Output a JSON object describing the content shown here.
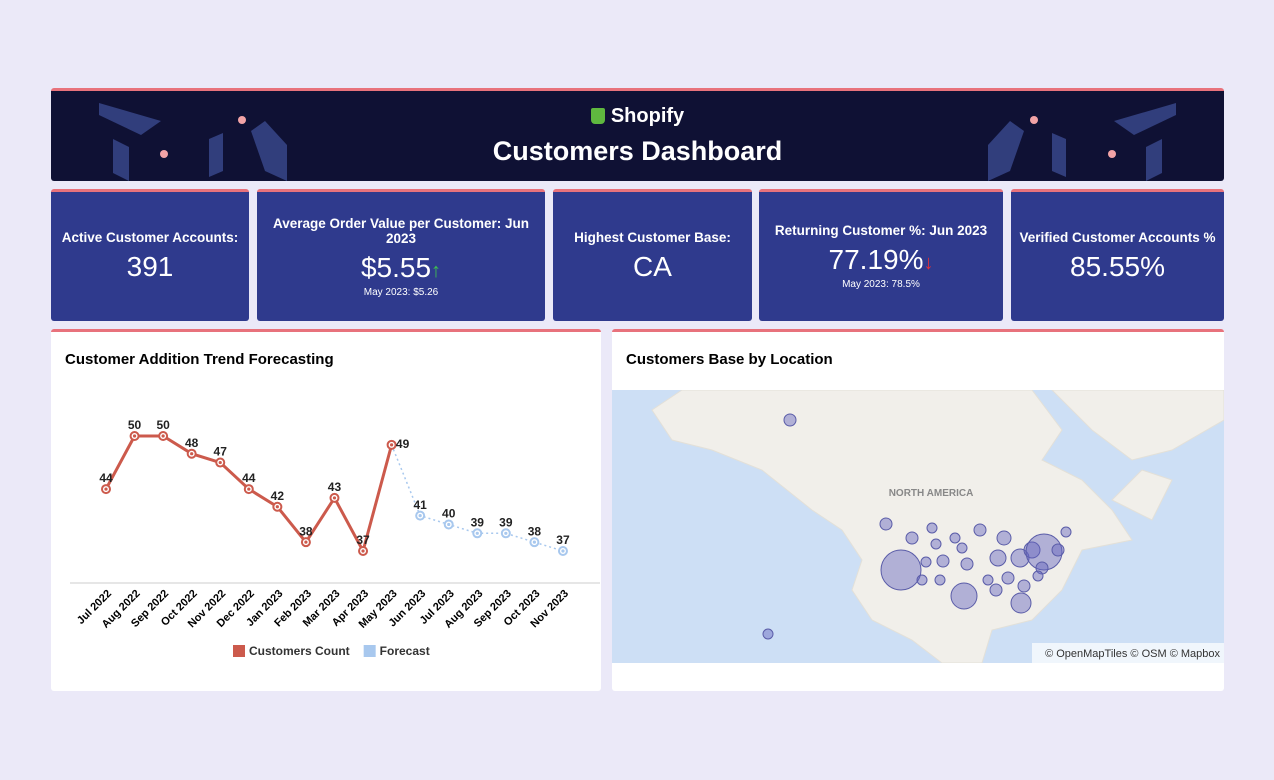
{
  "header": {
    "brand": "Shopify",
    "title": "Customers Dashboard"
  },
  "kpis": [
    {
      "title": "Active Customer Accounts:",
      "value": "391"
    },
    {
      "title": "Average Order Value per Customer: Jun 2023",
      "value": "$5.55",
      "sub": "May 2023: $5.26",
      "trend": "up"
    },
    {
      "title": "Highest Customer Base:",
      "value": "CA"
    },
    {
      "title": "Returning Customer %: Jun 2023",
      "value": "77.19%",
      "sub": "May 2023: 78.5%",
      "trend": "down"
    },
    {
      "title": "Verified Customer Accounts %",
      "value": "85.55%"
    }
  ],
  "chart_data": {
    "type": "line",
    "title": "Customer Addition Trend Forecasting",
    "categories": [
      "Jul 2022",
      "Aug 2022",
      "Sep 2022",
      "Oct 2022",
      "Nov 2022",
      "Dec 2022",
      "Jan 2023",
      "Feb 2023",
      "Mar 2023",
      "Apr 2023",
      "May 2023",
      "Jun 2023",
      "Jul 2023",
      "Aug 2023",
      "Sep 2023",
      "Oct 2023",
      "Nov 2023"
    ],
    "series": [
      {
        "name": "Customers Count",
        "color": "#cc5a4c",
        "values": [
          44,
          50,
          50,
          48,
          47,
          44,
          42,
          38,
          43,
          37,
          49,
          null,
          null,
          null,
          null,
          null,
          null
        ]
      },
      {
        "name": "Forecast",
        "color": "#a8c8ee",
        "values": [
          null,
          null,
          null,
          null,
          null,
          null,
          null,
          null,
          null,
          null,
          49,
          41,
          40,
          39,
          39,
          38,
          37
        ]
      }
    ],
    "legend": "bottom"
  },
  "map": {
    "title": "Customers Base by Location",
    "region_label": "NORTH AMERICA",
    "attribution": "© OpenMapTiles © OSM © Mapbox"
  }
}
